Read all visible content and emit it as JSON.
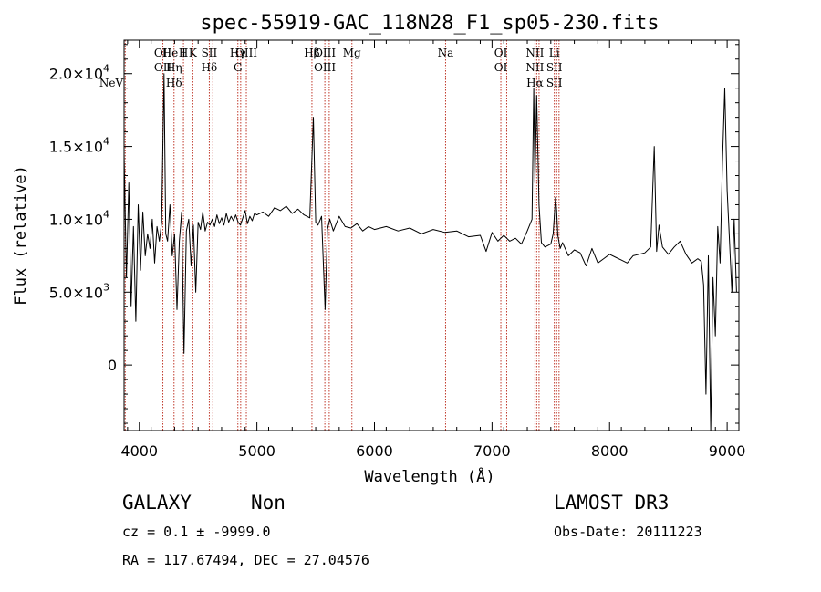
{
  "chart_data": {
    "type": "line",
    "title": "spec-55919-GAC_118N28_F1_sp05-230.fits",
    "xlabel": "Wavelength (Å)",
    "ylabel": "Flux (relative)",
    "xlim": [
      3870,
      9100
    ],
    "ylim": [
      -4500,
      22300
    ],
    "x_ticks": [
      4000,
      5000,
      6000,
      7000,
      8000,
      9000
    ],
    "y_ticks": [
      {
        "value": 0,
        "mantissa": "0",
        "exponent": ""
      },
      {
        "value": 5000,
        "mantissa": "5.0×10",
        "exponent": "3"
      },
      {
        "value": 10000,
        "mantissa": "1.0×10",
        "exponent": "4"
      },
      {
        "value": 15000,
        "mantissa": "1.5×10",
        "exponent": "4"
      },
      {
        "value": 20000,
        "mantissa": "2.0×10",
        "exponent": "4"
      }
    ],
    "series": [
      {
        "name": "flux",
        "x": [
          3870,
          3890,
          3910,
          3930,
          3950,
          3970,
          3990,
          4010,
          4030,
          4050,
          4070,
          4090,
          4110,
          4130,
          4150,
          4170,
          4190,
          4210,
          4225,
          4240,
          4260,
          4280,
          4300,
          4320,
          4340,
          4360,
          4380,
          4400,
          4420,
          4440,
          4460,
          4480,
          4500,
          4520,
          4540,
          4560,
          4580,
          4600,
          4620,
          4640,
          4660,
          4680,
          4700,
          4720,
          4740,
          4760,
          4780,
          4800,
          4820,
          4840,
          4860,
          4880,
          4900,
          4920,
          4940,
          4960,
          4980,
          5000,
          5050,
          5100,
          5150,
          5200,
          5250,
          5300,
          5350,
          5400,
          5450,
          5480,
          5500,
          5520,
          5550,
          5580,
          5600,
          5620,
          5650,
          5700,
          5750,
          5800,
          5850,
          5900,
          5950,
          6000,
          6100,
          6200,
          6300,
          6400,
          6500,
          6600,
          6700,
          6800,
          6900,
          6950,
          7000,
          7050,
          7100,
          7150,
          7200,
          7250,
          7300,
          7340,
          7355,
          7365,
          7380,
          7400,
          7420,
          7450,
          7500,
          7520,
          7540,
          7550,
          7560,
          7580,
          7600,
          7650,
          7700,
          7750,
          7800,
          7850,
          7900,
          7950,
          8000,
          8050,
          8100,
          8150,
          8200,
          8250,
          8300,
          8350,
          8380,
          8400,
          8420,
          8450,
          8500,
          8550,
          8600,
          8650,
          8700,
          8750,
          8780,
          8800,
          8820,
          8840,
          8860,
          8880,
          8900,
          8920,
          8940,
          8960,
          8980,
          9000,
          9020,
          9040,
          9060,
          9080
        ],
        "y": [
          14500,
          6000,
          12500,
          4000,
          9500,
          3000,
          11000,
          6500,
          10500,
          7500,
          9000,
          8000,
          10000,
          7000,
          9500,
          8500,
          9800,
          20000,
          9000,
          8500,
          11000,
          7500,
          9000,
          3800,
          8500,
          10500,
          800,
          9200,
          10000,
          6800,
          9600,
          5000,
          9800,
          9300,
          10500,
          9200,
          9800,
          9600,
          10000,
          9500,
          10300,
          9700,
          10100,
          9600,
          10400,
          9800,
          10200,
          9900,
          10300,
          9800,
          9600,
          10100,
          10600,
          9700,
          10200,
          9900,
          10400,
          10300,
          10500,
          10200,
          10800,
          10600,
          10900,
          10400,
          10700,
          10300,
          10100,
          17000,
          9800,
          9600,
          10200,
          3800,
          9300,
          10000,
          9200,
          10200,
          9500,
          9400,
          9700,
          9200,
          9500,
          9300,
          9500,
          9200,
          9400,
          9000,
          9300,
          9100,
          9200,
          8800,
          8900,
          7800,
          9100,
          8500,
          8900,
          8500,
          8700,
          8300,
          9200,
          10000,
          19000,
          12500,
          18500,
          11000,
          8400,
          8100,
          8300,
          9000,
          11500,
          10600,
          8900,
          8000,
          8400,
          7500,
          7900,
          7700,
          6800,
          8000,
          7000,
          7300,
          7600,
          7400,
          7200,
          7000,
          7500,
          7600,
          7700,
          8100,
          15000,
          7800,
          9600,
          8100,
          7600,
          8100,
          8500,
          7600,
          7000,
          7300,
          7100,
          5500,
          -2000,
          7500,
          -4500,
          6000,
          2000,
          9500,
          7000,
          14000,
          19000,
          12000,
          8500,
          5000,
          10000,
          5000
        ]
      }
    ],
    "emission_lines": [
      {
        "wl": 4200,
        "labels": [
          "OII",
          "OII"
        ]
      },
      {
        "wl": 4295,
        "labels": [
          "He I",
          "Hη",
          "Hδ"
        ]
      },
      {
        "wl": 4375,
        "labels": [
          "H"
        ]
      },
      {
        "wl": 4455,
        "labels": [
          "K"
        ]
      },
      {
        "wl": 4595,
        "labels": [
          "SII",
          "Hδ"
        ]
      },
      {
        "wl": 4625,
        "labels": []
      },
      {
        "wl": 4838,
        "labels": [
          "Hγ",
          "G"
        ]
      },
      {
        "wl": 4862,
        "labels": []
      },
      {
        "wl": 4910,
        "labels": [
          "OIII"
        ]
      },
      {
        "wl": 5468,
        "labels": [
          "Hβ"
        ]
      },
      {
        "wl": 5578,
        "labels": [
          "OIII",
          "OIII"
        ]
      },
      {
        "wl": 5615,
        "labels": []
      },
      {
        "wl": 5808,
        "labels": [
          "Mg"
        ]
      },
      {
        "wl": 6605,
        "labels": [
          "Na"
        ]
      },
      {
        "wl": 7075,
        "labels": [
          "OI",
          "OI"
        ]
      },
      {
        "wl": 7125,
        "labels": []
      },
      {
        "wl": 7365,
        "labels": [
          "NII",
          "NII",
          "Hα"
        ]
      },
      {
        "wl": 7380,
        "labels": []
      },
      {
        "wl": 7400,
        "labels": []
      },
      {
        "wl": 7530,
        "labels": [
          "Li",
          "SII",
          "SII"
        ]
      },
      {
        "wl": 7550,
        "labels": []
      },
      {
        "wl": 7570,
        "labels": []
      },
      {
        "wl": 3880,
        "labels": [
          "NeV"
        ]
      }
    ]
  },
  "info": {
    "class_label": "GALAXY",
    "subclass_label": "Non",
    "survey_label": "LAMOST DR3",
    "cz_text": "cz = 0.1 ± -9999.0",
    "obs_date_text": "Obs-Date: 20111223",
    "radec_text": "RA = 117.67494, DEC =  27.04576"
  },
  "colors": {
    "spectrum": "#000000",
    "line_marker": "#c0392b",
    "axis": "#000000"
  }
}
